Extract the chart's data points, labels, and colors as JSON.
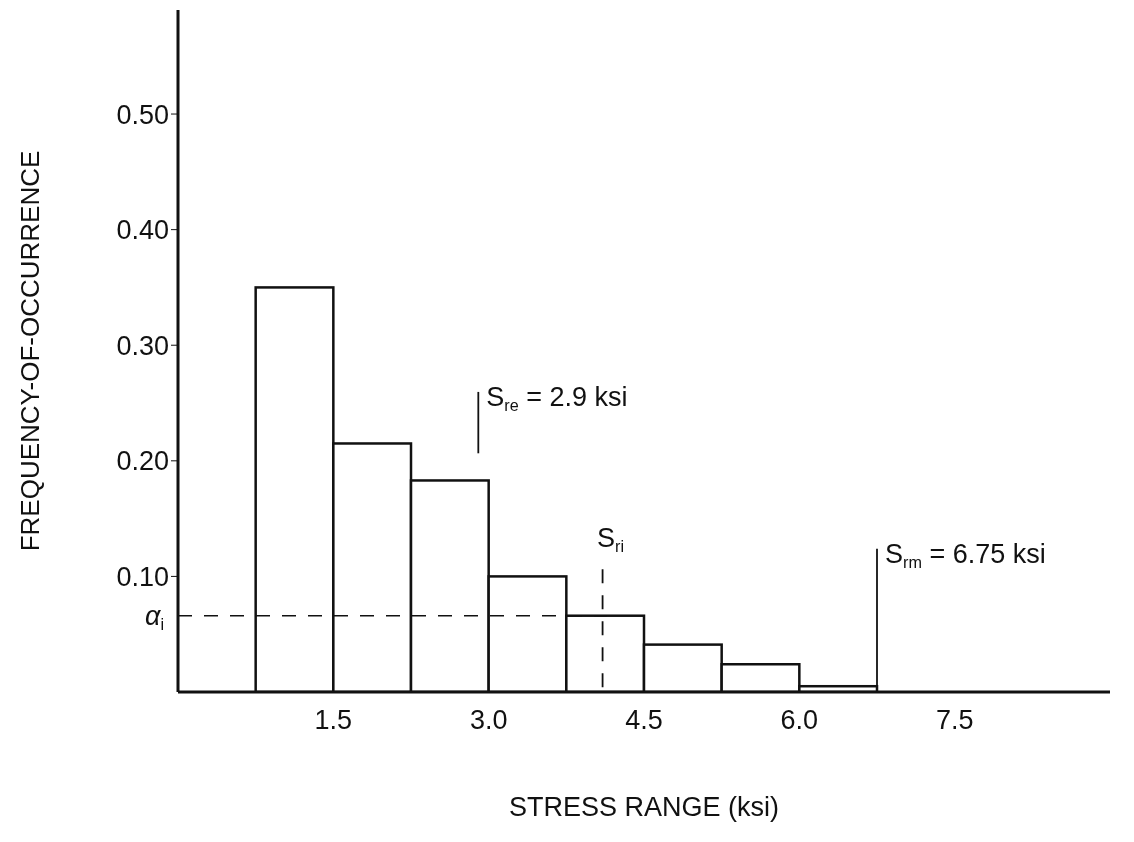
{
  "chart_data": {
    "type": "histogram",
    "xlabel": "STRESS RANGE (ksi)",
    "ylabel": "FREQUENCY-OF-OCCURRENCE",
    "bins": [
      0.75,
      1.5,
      2.25,
      3.0,
      3.75,
      4.5,
      5.25,
      6.0,
      6.75
    ],
    "values": [
      0.35,
      0.215,
      0.183,
      0.1,
      0.066,
      0.041,
      0.024,
      0.005
    ],
    "color": "#ffffff",
    "xlim": [
      0,
      9
    ],
    "xticks": [
      1.5,
      {
        "value": 3,
        "label": "3.0"
      },
      4.5,
      {
        "value": 6,
        "label": "6.0"
      },
      7.5
    ],
    "ylim": [
      0,
      0.59
    ],
    "yticks": [
      {
        "value": 0.1,
        "label": "0.10"
      },
      {
        "value": 0.2,
        "label": "0.20"
      },
      {
        "value": 0.3,
        "label": "0.30"
      },
      {
        "value": 0.4,
        "label": "0.40"
      },
      {
        "value": 0.5,
        "label": "0.50"
      }
    ],
    "ref_lines": [
      {
        "axis": "x",
        "value": 2.9,
        "label": "S$_{re}$ = 2.9 ksi",
        "line_style": "solid"
      },
      {
        "axis": "x",
        "value": 4.1,
        "label": "S$_{ri}$",
        "line_style": "dashed"
      },
      {
        "axis": "x",
        "value": 6.75,
        "label": "S$_{rm}$ = 6.75 ksi",
        "line_style": "solid"
      },
      {
        "axis": "y",
        "value": 0.066,
        "label": "α$_{i}$",
        "line_style": "dashed"
      }
    ],
    "grid": false,
    "legend": false
  }
}
